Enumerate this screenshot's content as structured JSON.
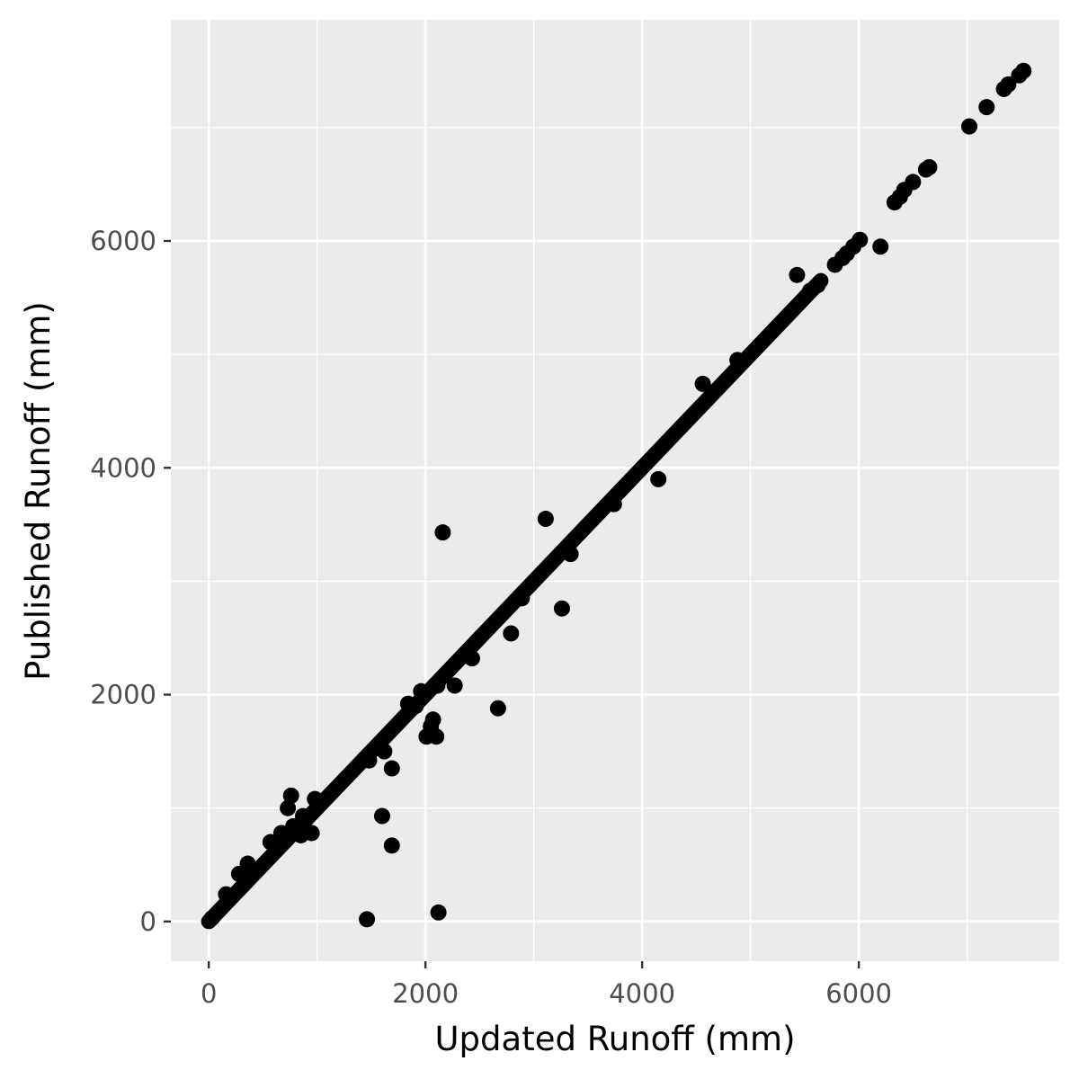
{
  "chart_data": {
    "type": "scatter",
    "xlabel": "Updated Runoff (mm)",
    "ylabel": "Published Runoff (mm)",
    "xlim": [
      -350,
      7850
    ],
    "ylim": [
      -350,
      7950
    ],
    "xticks": [
      0,
      2000,
      4000,
      6000
    ],
    "xtick_labels": [
      "0",
      "2000",
      "4000",
      "6000"
    ],
    "yticks": [
      0,
      2000,
      4000,
      6000
    ],
    "ytick_labels": [
      "0",
      "2000",
      "4000",
      "6000"
    ],
    "grid": true,
    "line_range": [
      0,
      5650
    ],
    "points": [
      [
        7520,
        7500
      ],
      [
        7480,
        7460
      ],
      [
        7380,
        7380
      ],
      [
        7340,
        7340
      ],
      [
        7180,
        7180
      ],
      [
        7020,
        7010
      ],
      [
        6650,
        6650
      ],
      [
        6620,
        6630
      ],
      [
        6500,
        6520
      ],
      [
        6420,
        6450
      ],
      [
        6380,
        6390
      ],
      [
        6330,
        6340
      ],
      [
        6010,
        6010
      ],
      [
        5950,
        5950
      ],
      [
        5890,
        5890
      ],
      [
        5850,
        5850
      ],
      [
        5780,
        5790
      ],
      [
        6200,
        5950
      ],
      [
        5430,
        5700
      ],
      [
        5620,
        5610
      ],
      [
        5550,
        5560
      ],
      [
        4880,
        4950
      ],
      [
        4560,
        4740
      ],
      [
        4150,
        3900
      ],
      [
        3740,
        3680
      ],
      [
        3340,
        3240
      ],
      [
        3260,
        2760
      ],
      [
        3110,
        3550
      ],
      [
        2890,
        2850
      ],
      [
        2790,
        2540
      ],
      [
        2670,
        1880
      ],
      [
        2430,
        2320
      ],
      [
        2160,
        3430
      ],
      [
        2270,
        2080
      ],
      [
        2110,
        2080
      ],
      [
        2120,
        80
      ],
      [
        2100,
        1630
      ],
      [
        2070,
        1780
      ],
      [
        2050,
        1720
      ],
      [
        2010,
        1630
      ],
      [
        1960,
        2030
      ],
      [
        1910,
        1900
      ],
      [
        1840,
        1920
      ],
      [
        1690,
        1350
      ],
      [
        1690,
        670
      ],
      [
        1620,
        1500
      ],
      [
        1600,
        930
      ],
      [
        1480,
        1420
      ],
      [
        1460,
        20
      ],
      [
        950,
        780
      ],
      [
        980,
        1080
      ],
      [
        760,
        1110
      ],
      [
        730,
        1000
      ],
      [
        850,
        760
      ],
      [
        870,
        930
      ],
      [
        780,
        840
      ],
      [
        670,
        780
      ],
      [
        570,
        700
      ],
      [
        360,
        510
      ],
      [
        280,
        420
      ],
      [
        160,
        240
      ],
      [
        30,
        30
      ]
    ]
  }
}
